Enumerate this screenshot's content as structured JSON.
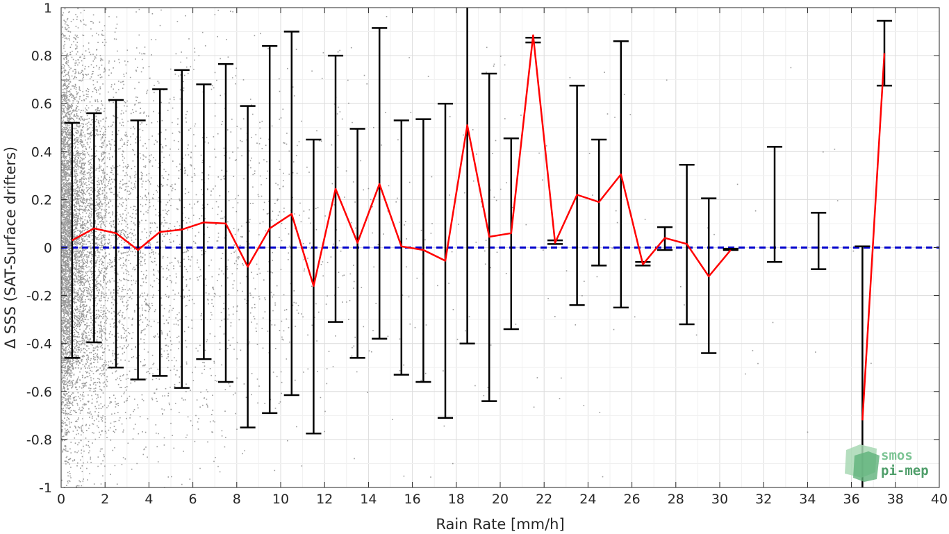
{
  "chart_data": {
    "type": "line",
    "title": "",
    "xlabel": "Rain Rate [mm/h]",
    "ylabel": "Δ SSS (SAT-Surface drifters)",
    "xlim": [
      0,
      40
    ],
    "ylim": [
      -1,
      1
    ],
    "x_ticks": [
      0,
      2,
      4,
      6,
      8,
      10,
      12,
      14,
      16,
      18,
      20,
      22,
      24,
      26,
      28,
      30,
      32,
      34,
      36,
      38,
      40
    ],
    "y_ticks": [
      -1,
      -0.8,
      -0.6,
      -0.4,
      -0.2,
      0,
      0.2,
      0.4,
      0.6,
      0.8,
      1
    ],
    "x_tick_labels": [
      "0",
      "2",
      "4",
      "6",
      "8",
      "10",
      "12",
      "14",
      "16",
      "18",
      "20",
      "22",
      "24",
      "26",
      "28",
      "30",
      "32",
      "34",
      "36",
      "38",
      "40"
    ],
    "y_tick_labels": [
      "-1",
      "-0.8",
      "-0.6",
      "-0.4",
      "-0.2",
      "0",
      "0.2",
      "0.4",
      "0.6",
      "0.8",
      "1"
    ],
    "grid": true,
    "reference_line": {
      "y": 0,
      "color": "#0000cc",
      "style": "dashed"
    },
    "series": [
      {
        "type": "line",
        "color": "#ff0000",
        "x": [
          0.5,
          1.5,
          2.5,
          3.5,
          4.5,
          5.5,
          6.5,
          7.5,
          8.5,
          9.5,
          10.5,
          11.5,
          12.5,
          13.5,
          14.5,
          15.5,
          16.5,
          17.5,
          18.5,
          19.5,
          20.5,
          21.5,
          22.5,
          23.5,
          24.5,
          25.5,
          26.5,
          27.5,
          28.5,
          29.5,
          30.5,
          36.5,
          37.5
        ],
        "values": [
          0.03,
          0.08,
          0.06,
          -0.01,
          0.065,
          0.075,
          0.105,
          0.1,
          -0.08,
          0.08,
          0.14,
          -0.16,
          0.245,
          0.02,
          0.265,
          0.005,
          -0.01,
          -0.055,
          0.51,
          0.045,
          0.06,
          0.885,
          0.02,
          0.22,
          0.19,
          0.305,
          -0.07,
          0.04,
          0.015,
          -0.12,
          -0.01,
          -0.72,
          0.81
        ]
      },
      {
        "type": "errorbar",
        "color": "#000000",
        "x": [
          0.5,
          1.5,
          2.5,
          3.5,
          4.5,
          5.5,
          6.5,
          7.5,
          8.5,
          9.5,
          10.5,
          11.5,
          12.5,
          13.5,
          14.5,
          15.5,
          16.5,
          17.5,
          18.5,
          19.5,
          20.5,
          21.5,
          22.5,
          23.5,
          24.5,
          25.5,
          26.5,
          27.5,
          28.5,
          29.5,
          30.5,
          32.5,
          34.5,
          36.5,
          37.5
        ],
        "lower": [
          -0.46,
          -0.395,
          -0.5,
          -0.55,
          -0.535,
          -0.585,
          -0.465,
          -0.56,
          -0.75,
          -0.69,
          -0.615,
          -0.775,
          -0.31,
          -0.46,
          -0.38,
          -0.53,
          -0.56,
          -0.71,
          -0.4,
          -0.64,
          -0.34,
          0.855,
          0.015,
          -0.24,
          -0.075,
          -0.25,
          -0.075,
          -0.01,
          -0.32,
          -0.44,
          -0.01,
          -0.06,
          -0.09,
          -1.2,
          0.675
        ],
        "upper": [
          0.52,
          0.56,
          0.615,
          0.53,
          0.66,
          0.74,
          0.68,
          0.765,
          0.59,
          0.84,
          0.9,
          0.45,
          0.8,
          0.495,
          0.915,
          0.53,
          0.535,
          0.6,
          1.2,
          0.725,
          0.455,
          0.875,
          0.03,
          0.675,
          0.45,
          0.86,
          -0.06,
          0.085,
          0.345,
          0.205,
          -0.005,
          0.42,
          0.145,
          0.005,
          0.945
        ],
        "cap_width": 0.7
      },
      {
        "type": "scatter",
        "color": "#888888"
      }
    ],
    "logo": {
      "line1": "smos",
      "line2": "pi-mep",
      "color": "#6fbf8a"
    }
  }
}
